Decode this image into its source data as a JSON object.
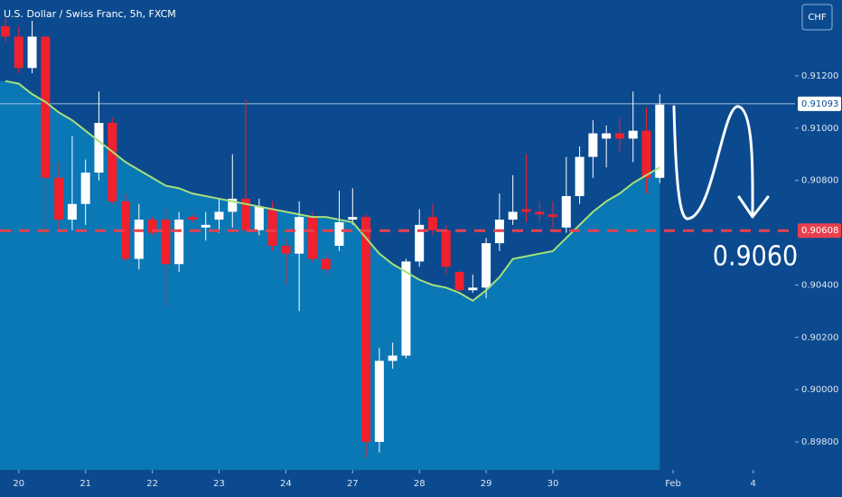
{
  "chart_data": {
    "type": "candlestick",
    "title": "U.S. Dollar / Swiss Franc, 5h, FXCM",
    "currency_button": "CHF",
    "annotation": "0.9060",
    "up_color": "#ffffff",
    "down_color": "#f0202e",
    "open": [
      0.9139,
      0.9135,
      0.9123,
      0.9135,
      0.9081,
      0.9065,
      0.9071,
      0.9083,
      0.9102,
      0.9072,
      0.905,
      0.9065,
      0.9065,
      0.9048,
      0.9066,
      0.9062,
      0.9065,
      0.9068,
      0.9073,
      0.9061,
      0.9069,
      0.9055,
      0.9052,
      0.9066,
      0.905,
      0.9055,
      0.9065,
      0.9066,
      0.898,
      0.9011,
      0.9013,
      0.9049,
      0.9066,
      0.9061,
      0.9045,
      0.9038,
      0.9039,
      0.9056,
      0.9065,
      0.9069,
      0.9068,
      0.9067,
      0.9062,
      0.9074,
      0.9089,
      0.9096,
      0.9098,
      0.9096,
      0.9099,
      0.9081
    ],
    "high": [
      0.9142,
      0.9139,
      0.9141,
      0.9135,
      0.9087,
      0.9097,
      0.9088,
      0.9114,
      0.9104,
      0.9075,
      0.9071,
      0.9066,
      0.9069,
      0.9068,
      0.9067,
      0.9068,
      0.9073,
      0.909,
      0.9111,
      0.9073,
      0.9072,
      0.9058,
      0.9072,
      0.9068,
      0.9052,
      0.9076,
      0.9077,
      0.9067,
      0.9016,
      0.9018,
      0.905,
      0.9069,
      0.9071,
      0.9063,
      0.9046,
      0.9044,
      0.9058,
      0.9075,
      0.9082,
      0.909,
      0.9072,
      0.9072,
      0.9089,
      0.9093,
      0.9103,
      0.9101,
      0.9104,
      0.9114,
      0.9108,
      0.9113
    ],
    "low": [
      0.9133,
      0.9121,
      0.9121,
      0.9059,
      0.9061,
      0.9061,
      0.9063,
      0.908,
      0.9071,
      0.9049,
      0.9046,
      0.9059,
      0.9032,
      0.9045,
      0.9064,
      0.9057,
      0.906,
      0.9062,
      0.906,
      0.9059,
      0.9053,
      0.904,
      0.903,
      0.9049,
      0.9044,
      0.9053,
      0.9063,
      0.8974,
      0.8976,
      0.9008,
      0.9012,
      0.9047,
      0.9059,
      0.9044,
      0.9037,
      0.9037,
      0.9035,
      0.9053,
      0.9063,
      0.9064,
      0.9064,
      0.9062,
      0.906,
      0.9071,
      0.9081,
      0.9085,
      0.9091,
      0.9087,
      0.9075,
      0.9079
    ],
    "close": [
      0.9135,
      0.9123,
      0.9135,
      0.9081,
      0.9065,
      0.9071,
      0.9083,
      0.9102,
      0.9072,
      0.905,
      0.9065,
      0.906,
      0.9048,
      0.9065,
      0.9065,
      0.9063,
      0.9068,
      0.9073,
      0.9061,
      0.907,
      0.9055,
      0.9052,
      0.9066,
      0.905,
      0.9046,
      0.9064,
      0.9066,
      0.898,
      0.9011,
      0.9013,
      0.9049,
      0.9063,
      0.9061,
      0.9047,
      0.9038,
      0.9039,
      0.9056,
      0.9065,
      0.9068,
      0.9068,
      0.9067,
      0.9066,
      0.9074,
      0.9089,
      0.9098,
      0.9098,
      0.9096,
      0.9099,
      0.9081,
      0.9109
    ],
    "ma": {
      "color": "#a6e07a",
      "area_color": "#0a80bb",
      "values": [
        0.9118,
        0.9117,
        0.9113,
        0.911,
        0.9106,
        0.9103,
        0.9099,
        0.9095,
        0.9091,
        0.9087,
        0.9084,
        0.9081,
        0.9078,
        0.9077,
        0.9075,
        0.9074,
        0.9073,
        0.9072,
        0.9071,
        0.907,
        0.9069,
        0.9068,
        0.9067,
        0.9066,
        0.9066,
        0.9065,
        0.9064,
        0.9058,
        0.9052,
        0.9048,
        0.9045,
        0.9042,
        0.904,
        0.9039,
        0.9037,
        0.9034,
        0.9038,
        0.9043,
        0.905,
        0.9051,
        0.9052,
        0.9053,
        0.9058,
        0.9063,
        0.9068,
        0.9072,
        0.9075,
        0.9079,
        0.9082,
        0.9085
      ]
    },
    "last_price": 0.91093,
    "target_price": 0.90608,
    "target_color": "#e8404e",
    "xlim": [
      -0.406,
      59.13
    ],
    "ylim": [
      0.89693,
      0.9149
    ],
    "xticks": [
      {
        "value": 1,
        "label": "20"
      },
      {
        "value": 6,
        "label": "21"
      },
      {
        "value": 11,
        "label": "22"
      },
      {
        "value": 16,
        "label": "23"
      },
      {
        "value": 21,
        "label": "24"
      },
      {
        "value": 26,
        "label": "27"
      },
      {
        "value": 31,
        "label": "28"
      },
      {
        "value": 36,
        "label": "29"
      },
      {
        "value": 41,
        "label": "30"
      },
      {
        "value": 50,
        "label": "Feb"
      },
      {
        "value": 56,
        "label": "4"
      }
    ],
    "yticks": [
      {
        "value": 0.912,
        "label": "0.91200"
      },
      {
        "value": 0.91,
        "label": "0.91000"
      },
      {
        "value": 0.908,
        "label": "0.90800"
      },
      {
        "value": 0.904,
        "label": "0.90400"
      },
      {
        "value": 0.902,
        "label": "0.90200"
      },
      {
        "value": 0.9,
        "label": "0.90000"
      },
      {
        "value": 0.898,
        "label": "0.89800"
      }
    ]
  }
}
